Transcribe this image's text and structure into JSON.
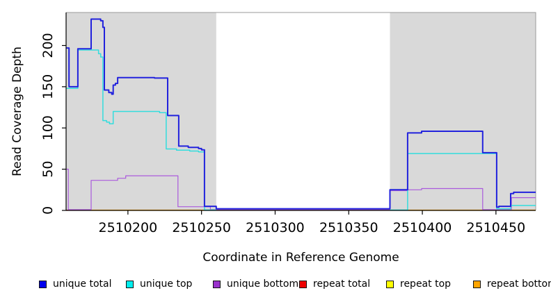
{
  "chart_data": {
    "type": "line",
    "title": "",
    "xlabel": "Coordinate in Reference Genome",
    "ylabel": "Read Coverage Depth",
    "xlim": [
      2510158,
      2510477
    ],
    "ylim": [
      0,
      240
    ],
    "x_ticks": [
      2510200,
      2510250,
      2510300,
      2510350,
      2510400,
      2510450
    ],
    "y_ticks": [
      0,
      50,
      100,
      150,
      200
    ],
    "grid": false,
    "plot_bg": "#ffffff",
    "highlight_regions": [
      {
        "name": "covered-block-left",
        "x0": 2510158,
        "x1": 2510260,
        "color": "#d9d9d9"
      },
      {
        "name": "covered-block-right",
        "x0": 2510378,
        "x1": 2510477,
        "color": "#d9d9d9"
      }
    ],
    "series": [
      {
        "name": "repeat top",
        "color": "#eeee00",
        "width": 1.2,
        "segments": [
          [
            [
              2510158,
              0.3
            ],
            [
              2510477,
              0.3
            ]
          ]
        ]
      },
      {
        "name": "repeat total",
        "color": "#dd2222",
        "width": 1.2,
        "segments": [
          [
            [
              2510158,
              0.3
            ],
            [
              2510477,
              0.3
            ]
          ]
        ]
      },
      {
        "name": "repeat bottom",
        "color": "#ffa500",
        "width": 1.5,
        "segments": [
          [
            [
              2510175,
              0.3
            ],
            [
              2510477,
              0.3
            ]
          ]
        ]
      },
      {
        "name": "unique bottom",
        "color": "#aa5add",
        "width": 1.2,
        "segments": [
          [
            [
              2510158,
              50
            ],
            [
              2510159.5,
              1
            ],
            [
              2510175,
              36.5
            ],
            [
              2510193,
              39
            ],
            [
              2510198.5,
              42
            ],
            [
              2510234,
              4.5
            ],
            [
              2510256,
              1
            ],
            [
              2510378,
              24
            ],
            [
              2510390,
              25
            ],
            [
              2510399.5,
              26.5
            ],
            [
              2510441,
              1
            ],
            [
              2510460.5,
              15.5
            ],
            [
              2510477,
              15.5
            ]
          ]
        ]
      },
      {
        "name": "unique top",
        "color": "#33dddd",
        "width": 1.5,
        "segments": [
          [
            [
              2510158,
              148
            ],
            [
              2510166,
              194.5
            ],
            [
              2510180,
              190
            ],
            [
              2510181.5,
              186
            ],
            [
              2510183,
              109
            ],
            [
              2510185.5,
              107
            ],
            [
              2510187.5,
              105
            ],
            [
              2510190,
              120
            ],
            [
              2510221.5,
              118.5
            ],
            [
              2510226,
              74.5
            ],
            [
              2510233,
              73
            ],
            [
              2510242,
              72
            ],
            [
              2510248,
              71
            ],
            [
              2510252,
              0.5
            ],
            [
              2510260,
              0.5
            ]
          ],
          [
            [
              2510378,
              0.5
            ],
            [
              2510390,
              69
            ],
            [
              2510450.5,
              2
            ],
            [
              2510460,
              6
            ],
            [
              2510477,
              6
            ]
          ]
        ]
      },
      {
        "name": "unique total",
        "color": "#2222dd",
        "width": 2,
        "segments": [
          [
            [
              2510158,
              197
            ],
            [
              2510160,
              150
            ],
            [
              2510166,
              196
            ],
            [
              2510175,
              232
            ],
            [
              2510181.5,
              230
            ],
            [
              2510183,
              222
            ],
            [
              2510184,
              146
            ],
            [
              2510187,
              143
            ],
            [
              2510189,
              141
            ],
            [
              2510190,
              152
            ],
            [
              2510191.5,
              154
            ],
            [
              2510193,
              161
            ],
            [
              2510218,
              160.5
            ],
            [
              2510227,
              115
            ],
            [
              2510234.5,
              78
            ],
            [
              2510241,
              76.5
            ],
            [
              2510248,
              75
            ],
            [
              2510250,
              73.5
            ],
            [
              2510252,
              5
            ],
            [
              2510260,
              2
            ],
            [
              2510378,
              25
            ],
            [
              2510390,
              94
            ],
            [
              2510399.5,
              96
            ],
            [
              2510441,
              70
            ],
            [
              2510450.5,
              4
            ],
            [
              2510452,
              5
            ],
            [
              2510460,
              20.5
            ],
            [
              2510462,
              22
            ],
            [
              2510477,
              22
            ]
          ]
        ]
      }
    ],
    "legend": [
      {
        "label": "unique total",
        "color": "#0000ee"
      },
      {
        "label": "unique top",
        "color": "#00eeee"
      },
      {
        "label": "unique bottom",
        "color": "#9932cc"
      },
      {
        "label": "repeat total",
        "color": "#ee0000"
      },
      {
        "label": "repeat top",
        "color": "#ffff00"
      },
      {
        "label": "repeat bottom",
        "color": "#ffa500"
      }
    ],
    "legend_position": "bottom"
  }
}
